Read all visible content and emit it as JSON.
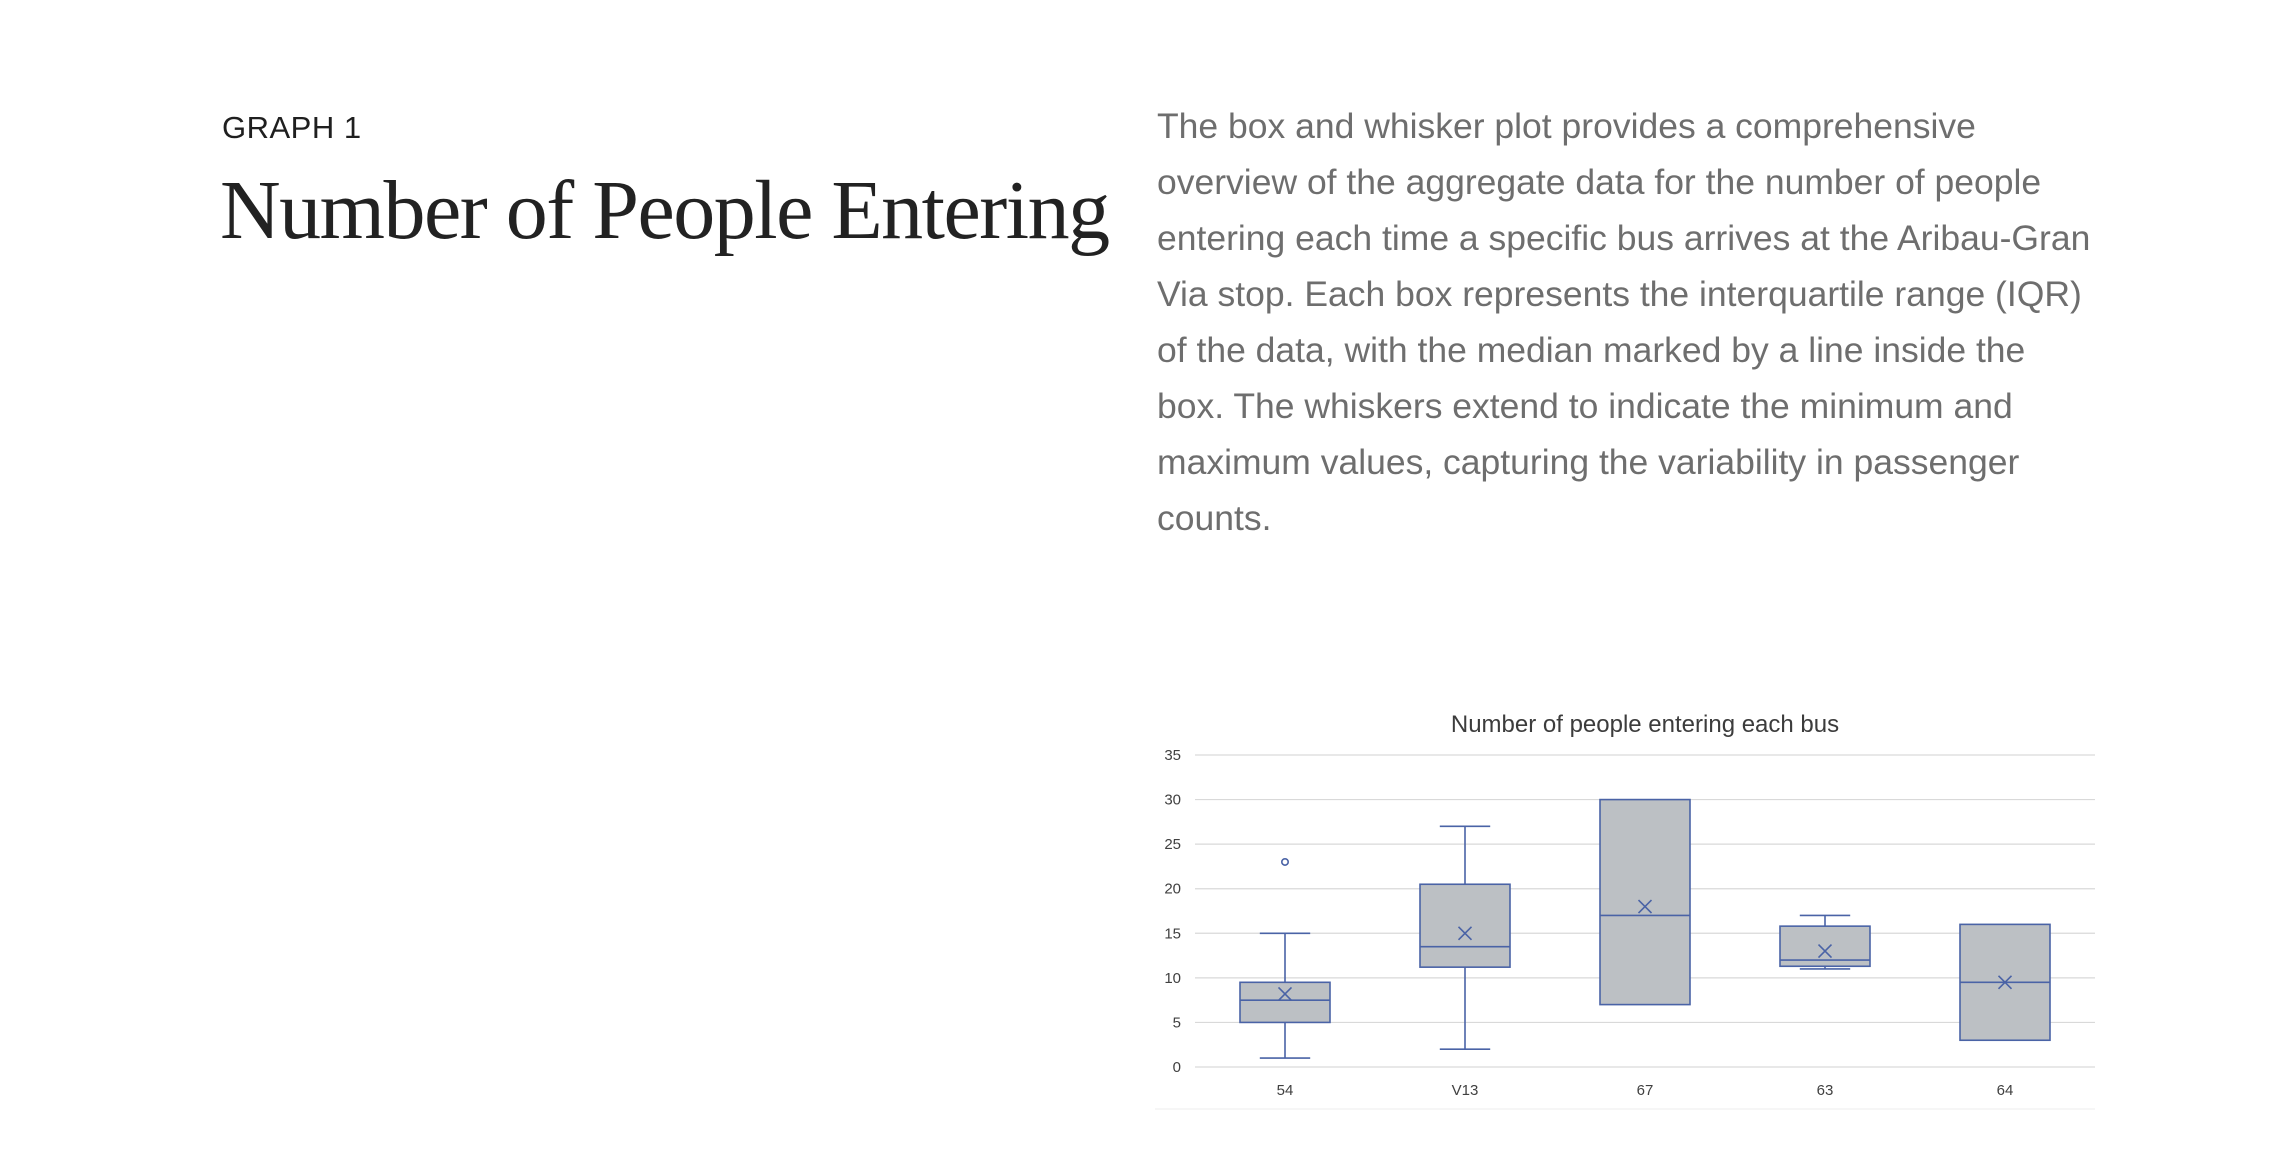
{
  "section": {
    "kicker": "GRAPH 1",
    "title": "Number of People Entering",
    "description": "The box and whisker plot provides a comprehensive overview of the aggregate data for the number of people entering each time a specific bus arrives at the Aribau-Gran Via stop. Each box represents the interquartile range (IQR) of the data, with the median marked by a line inside the box. The whiskers extend to indicate the minimum and maximum values, capturing the variability in passenger counts."
  },
  "chart_data": {
    "type": "box",
    "title": "Number of people entering each bus",
    "xlabel": "",
    "ylabel": "",
    "ylim": [
      0,
      35
    ],
    "yticks": [
      0,
      5,
      10,
      15,
      20,
      25,
      30,
      35
    ],
    "grid": true,
    "categories": [
      "54",
      "V13",
      "67",
      "63",
      "64"
    ],
    "boxes": [
      {
        "category": "54",
        "min": 1,
        "q1": 5,
        "median": 7.5,
        "q3": 9.5,
        "max": 15,
        "mean": 8.2,
        "outliers": [
          23
        ]
      },
      {
        "category": "V13",
        "min": 2,
        "q1": 11.2,
        "median": 13.5,
        "q3": 20.5,
        "max": 27,
        "mean": 15,
        "outliers": []
      },
      {
        "category": "67",
        "min": 7,
        "q1": 7,
        "median": 17,
        "q3": 30,
        "max": 30,
        "mean": 18,
        "outliers": []
      },
      {
        "category": "63",
        "min": 11,
        "q1": 11.3,
        "median": 12,
        "q3": 15.8,
        "max": 17,
        "mean": 13,
        "outliers": []
      },
      {
        "category": "64",
        "min": 3,
        "q1": 3,
        "median": 9.5,
        "q3": 16,
        "max": 16,
        "mean": 9.5,
        "outliers": []
      }
    ],
    "colors": {
      "box_fill": "#bcc0c4",
      "box_stroke": "#4a63a6",
      "grid": "#d9d9d9",
      "text": "#404040",
      "title": "#3c3c3c"
    }
  }
}
